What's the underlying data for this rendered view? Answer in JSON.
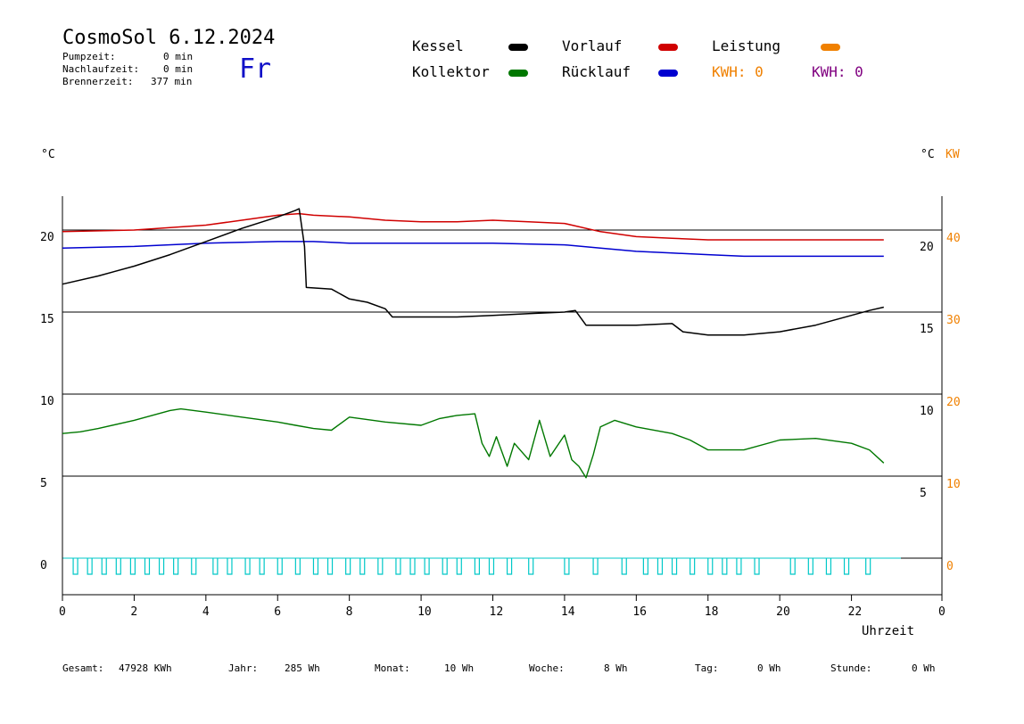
{
  "header": {
    "title": "CosmoSol 6.12.2024",
    "day": "Fr",
    "pumpzeit_label": "Pumpzeit:",
    "pumpzeit_value": "0 min",
    "nachlauf_label": "Nachlaufzeit:",
    "nachlauf_value": "0 min",
    "brenner_label": "Brennerzeit:",
    "brenner_value": "377 min"
  },
  "legend": {
    "kessel": "Kessel",
    "kollektor": "Kollektor",
    "vorlauf": "Vorlauf",
    "ruecklauf": "Rücklauf",
    "leistung": "Leistung",
    "kwh1": "KWH: 0",
    "kwh2": "KWH: 0"
  },
  "colors": {
    "kessel": "#000000",
    "kollektor": "#007800",
    "vorlauf": "#d00000",
    "ruecklauf": "#0000d0",
    "leistung": "#f08000",
    "kwh2": "#800080",
    "pump": "#00c8c8"
  },
  "axes": {
    "left_unit": "°C",
    "right_unit": "°C",
    "right_unit2": "KW",
    "xlabel": "Uhrzeit"
  },
  "footer": {
    "gesamt_label": "Gesamt:",
    "gesamt_value": "47928 KWh",
    "jahr_label": "Jahr:",
    "jahr_value": "285 Wh",
    "monat_label": "Monat:",
    "monat_value": "10 Wh",
    "woche_label": "Woche:",
    "woche_value": "8 Wh",
    "tag_label": "Tag:",
    "tag_value": "0 Wh",
    "stunde_label": "Stunde:",
    "stunde_value": "0 Wh"
  },
  "chart_data": {
    "type": "line",
    "xlim": [
      0,
      24
    ],
    "ylim": [
      -2,
      22.5
    ],
    "x_ticks": [
      "0",
      "2",
      "4",
      "6",
      "8",
      "10",
      "12",
      "14",
      "16",
      "18",
      "20",
      "22",
      "0"
    ],
    "y_ticks_left": [
      "0",
      "5",
      "10",
      "15",
      "20"
    ],
    "y_ticks_right_mid": [
      "5",
      "10",
      "15",
      "20"
    ],
    "y_ticks_right_kw": [
      "0",
      "10",
      "20",
      "30",
      "40"
    ],
    "grid_y": [
      0,
      5,
      10,
      15,
      20
    ],
    "series": [
      {
        "name": "Vorlauf",
        "x": [
          0,
          2,
          4,
          5,
          6,
          6.6,
          7,
          8,
          9,
          10,
          11,
          12,
          13,
          14,
          15,
          16,
          17,
          18,
          19,
          20,
          21,
          22,
          22.9
        ],
        "y": [
          19.9,
          20.0,
          20.3,
          20.6,
          20.9,
          21.0,
          20.9,
          20.8,
          20.6,
          20.5,
          20.5,
          20.6,
          20.5,
          20.4,
          19.9,
          19.6,
          19.5,
          19.4,
          19.4,
          19.4,
          19.4,
          19.4,
          19.4
        ]
      },
      {
        "name": "Rücklauf",
        "x": [
          0,
          2,
          4,
          6,
          7,
          8,
          10,
          12,
          14,
          15,
          16,
          17,
          18,
          19,
          20,
          21,
          22,
          22.9
        ],
        "y": [
          18.9,
          19.0,
          19.2,
          19.3,
          19.3,
          19.2,
          19.2,
          19.2,
          19.1,
          18.9,
          18.7,
          18.6,
          18.5,
          18.4,
          18.4,
          18.4,
          18.4,
          18.4
        ]
      },
      {
        "name": "Kessel",
        "x": [
          0,
          1,
          2,
          3,
          4,
          5,
          6,
          6.5,
          6.6,
          6.75,
          6.8,
          7.5,
          8,
          8.5,
          9,
          9.2,
          10,
          11,
          12,
          13,
          14,
          14.3,
          14.5,
          14.6,
          15,
          16,
          17,
          17.3,
          18,
          19,
          20,
          21,
          22,
          22.5,
          22.9
        ],
        "y": [
          16.7,
          17.2,
          17.8,
          18.5,
          19.3,
          20.1,
          20.8,
          21.2,
          21.3,
          19.0,
          16.5,
          16.4,
          15.8,
          15.6,
          15.2,
          14.7,
          14.7,
          14.7,
          14.8,
          14.9,
          15.0,
          15.1,
          14.5,
          14.2,
          14.2,
          14.2,
          14.3,
          13.8,
          13.6,
          13.6,
          13.8,
          14.2,
          14.8,
          15.1,
          15.3
        ]
      },
      {
        "name": "Kollektor",
        "x": [
          0,
          0.5,
          1,
          2,
          3,
          3.3,
          4,
          5,
          6,
          6.5,
          7,
          7.5,
          8,
          9,
          10,
          10.5,
          11,
          11.5,
          11.7,
          11.9,
          12.1,
          12.4,
          12.6,
          13,
          13.3,
          13.6,
          14,
          14.2,
          14.4,
          14.6,
          14.8,
          15,
          15.4,
          16,
          17,
          17.5,
          18,
          18.5,
          19,
          20,
          21,
          22,
          22.5,
          22.9
        ],
        "y": [
          7.6,
          7.7,
          7.9,
          8.4,
          9.0,
          9.1,
          8.9,
          8.6,
          8.3,
          8.1,
          7.9,
          7.8,
          8.6,
          8.3,
          8.1,
          8.5,
          8.7,
          8.8,
          7.0,
          6.2,
          7.4,
          5.6,
          7.0,
          6.0,
          8.4,
          6.2,
          7.5,
          6.0,
          5.6,
          4.9,
          6.3,
          8.0,
          8.4,
          8.0,
          7.6,
          7.2,
          6.6,
          6.6,
          6.6,
          7.2,
          7.3,
          7.0,
          6.6,
          5.8
        ]
      }
    ]
  }
}
